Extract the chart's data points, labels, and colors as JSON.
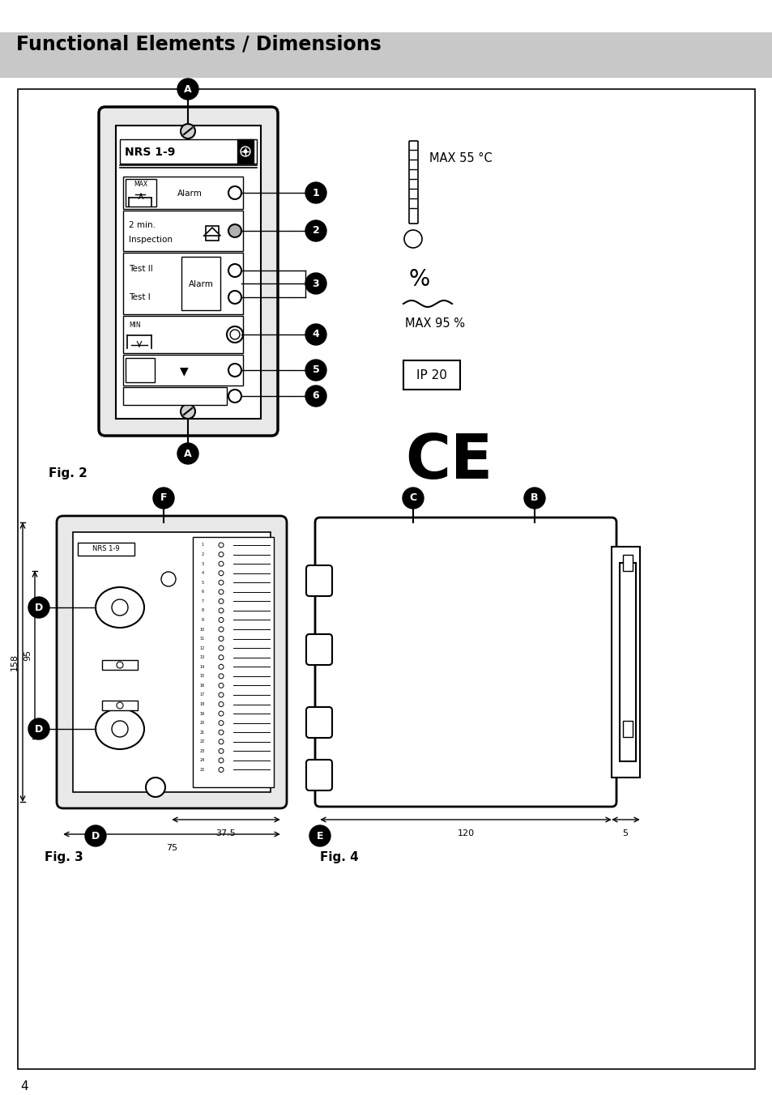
{
  "title": "Functional Elements / Dimensions",
  "title_bg": "#c8c8c8",
  "page_number": "4",
  "fig2_label": "Fig. 2",
  "fig3_label": "Fig. 3",
  "fig4_label": "Fig. 4",
  "device_name": "NRS 1-9",
  "max_temp": "MAX 55 °C",
  "max_humidity": "MAX 95 %",
  "ip_rating": "IP 20",
  "dim_158": "158",
  "dim_95": "95",
  "dim_37_5": "37.5",
  "dim_75": "75",
  "dim_120": "120",
  "dim_5": "5"
}
